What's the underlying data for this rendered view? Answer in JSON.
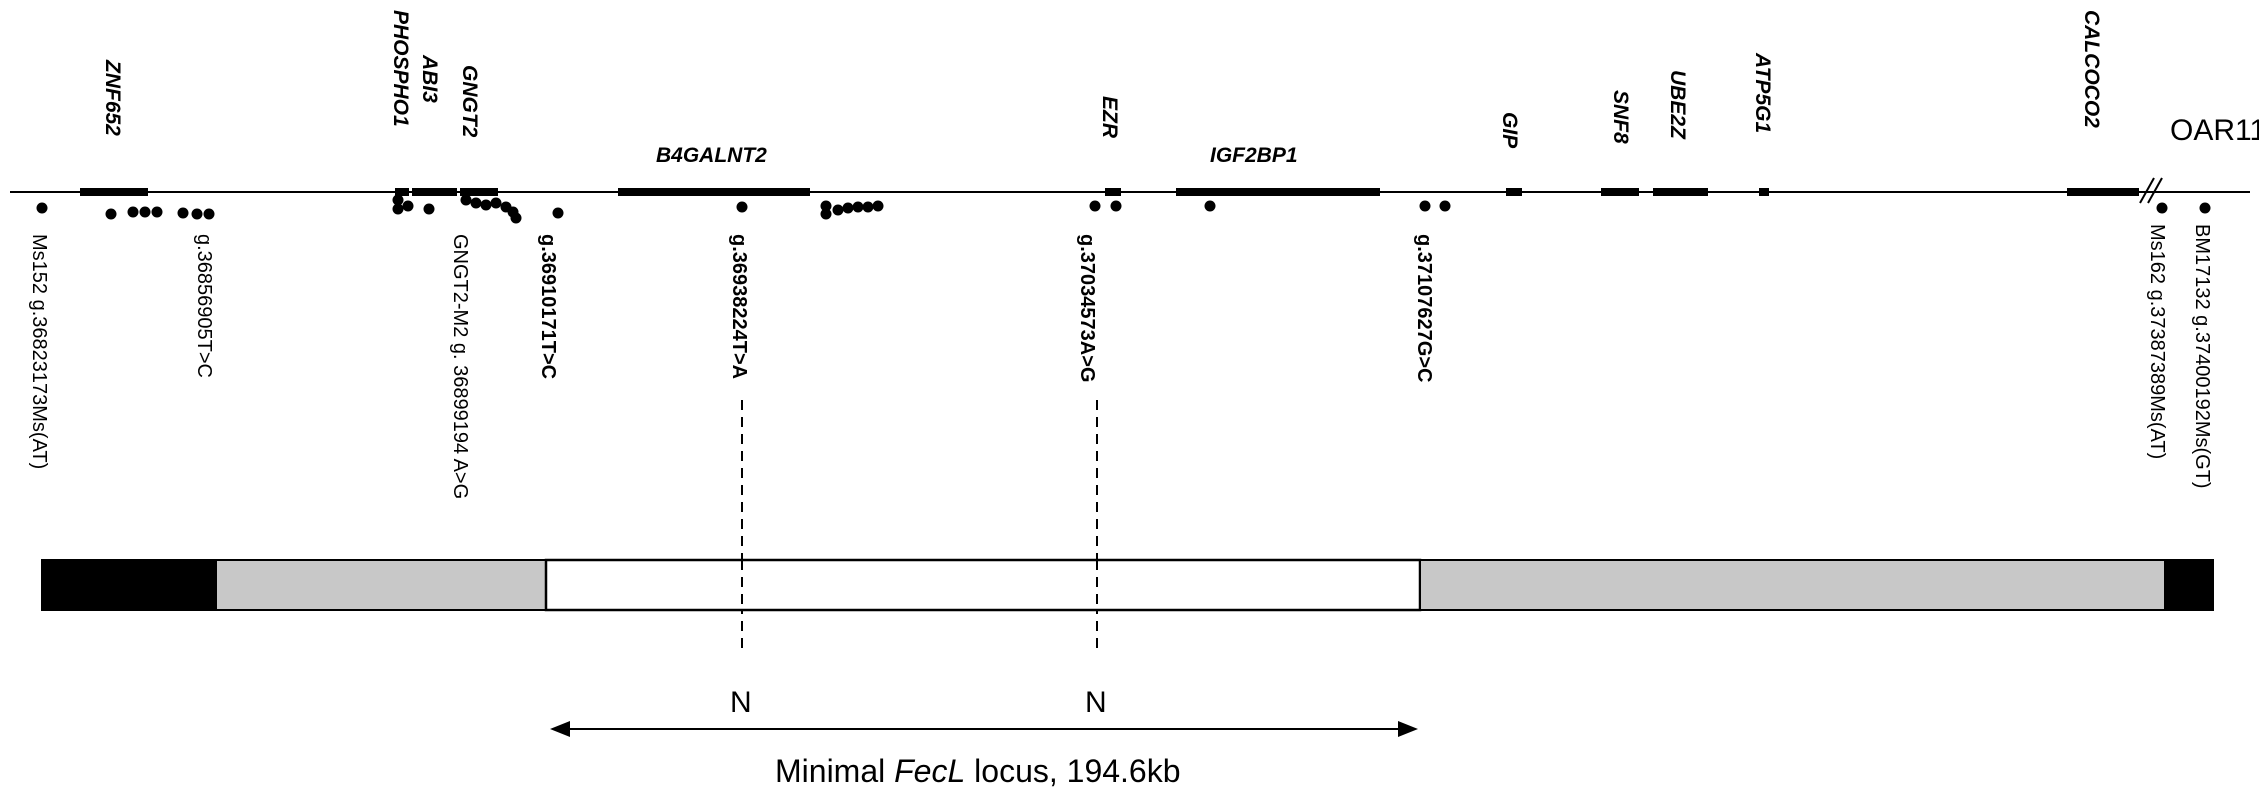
{
  "chromosome": "OAR11",
  "genes": [
    {
      "name": "ZNF652"
    },
    {
      "name": "PHOSPHO1"
    },
    {
      "name": "ABI3"
    },
    {
      "name": "GNGT2"
    },
    {
      "name": "B4GALNT2"
    },
    {
      "name": "EZR"
    },
    {
      "name": "IGF2BP1"
    },
    {
      "name": "GIP"
    },
    {
      "name": "SNF8"
    },
    {
      "name": "UBE2Z"
    },
    {
      "name": "ATP5G1"
    },
    {
      "name": "CALCOCO2"
    }
  ],
  "markers": [
    {
      "label": "Ms152  g.36823173Ms(AT)",
      "bold": false
    },
    {
      "label": "g.36856905T>C",
      "bold": false
    },
    {
      "label": "GNGT2-M2  g. 36899194 A>G",
      "bold": false
    },
    {
      "label": "g.36910171T>C",
      "bold": true
    },
    {
      "label": "g.36938224T>A",
      "bold": true
    },
    {
      "label": "g.37034573A>G",
      "bold": true
    },
    {
      "label": "g.37107627G>C",
      "bold": true
    },
    {
      "label": "Ms162  g.37387389Ms(AT)",
      "bold": false
    },
    {
      "label": "BM17132  g.37400192Ms(GT)",
      "bold": false
    }
  ],
  "haplotype_segments": [
    {
      "color": "#000000",
      "state": "black"
    },
    {
      "color": "#c8c8c8",
      "state": "grey"
    },
    {
      "color": "#ffffff",
      "state": "white"
    },
    {
      "color": "#c8c8c8",
      "state": "grey"
    },
    {
      "color": "#000000",
      "state": "black"
    }
  ],
  "n_labels": [
    "N",
    "N"
  ],
  "caption": {
    "prefix": "Minimal ",
    "locus": "FecL",
    "suffix": " locus, 194.6kb"
  }
}
